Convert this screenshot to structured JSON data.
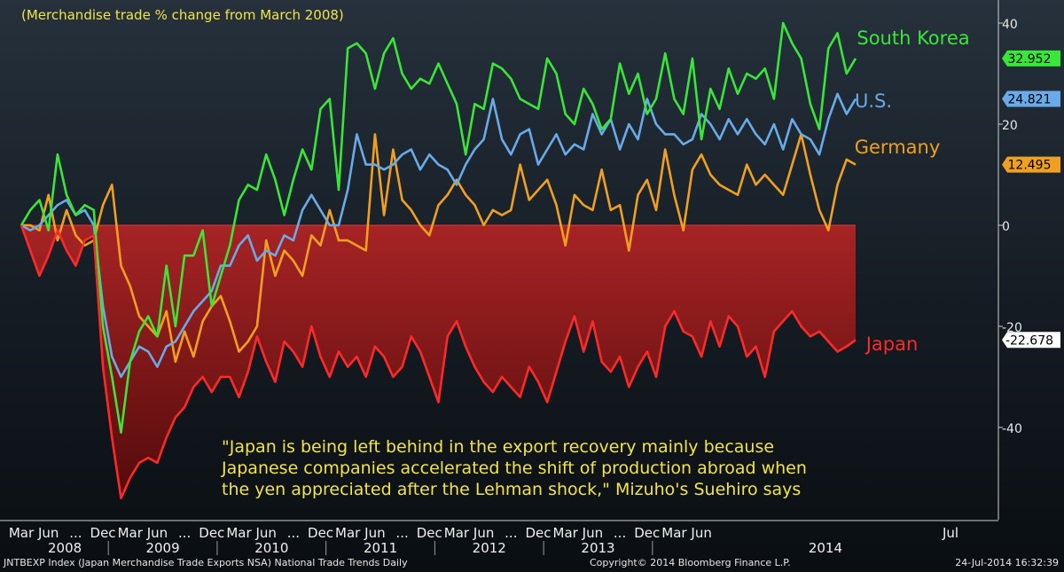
{
  "header": {
    "subtitle": "(Merchandise trade % change from March 2008)"
  },
  "annotation": {
    "lines": [
      "\"Japan is being left behind in the export recovery mainly because",
      "Japanese companies accelerated the shift of production abroad when",
      "the yen appreciated after the Lehman shock,\" Mizuho's Suehiro says"
    ]
  },
  "footer": {
    "left": "JNTBEXP Index (Japan Merchandise Trade Exports NSA) National Trade Trends  Daily",
    "center": "Copyright© 2014 Bloomberg Finance L.P.",
    "right": "24-Jul-2014 16:32:39"
  },
  "colors": {
    "south_korea": "#39e639",
    "us": "#6aaae8",
    "germany": "#f0a020",
    "japan": "#ff2a2a",
    "japan_fill": "#b01818",
    "text_yellow": "#f2e44a"
  },
  "chart_data": {
    "type": "line",
    "ylim": [
      -55,
      42
    ],
    "yticks": [
      40,
      20,
      0,
      -20,
      -40
    ],
    "fill_series": "Japan",
    "x_month_ticks": [
      "Mar",
      "Jun",
      "...",
      "Dec",
      "Mar",
      "Jun",
      "...",
      "Dec",
      "Mar",
      "Jun",
      "...",
      "Dec",
      "Mar",
      "Jun",
      "...",
      "Dec",
      "Mar",
      "Jun",
      "...",
      "Dec",
      "Mar",
      "Jun",
      "...",
      "Dec",
      "Mar",
      "Jun",
      "Jul"
    ],
    "x_year_labels": [
      "2008",
      "2009",
      "2010",
      "2011",
      "2012",
      "2013",
      "2014"
    ],
    "last_value_badges": [
      "32.952",
      "24.821",
      "12.495",
      "-22.678"
    ],
    "series": [
      {
        "name": "South Korea",
        "color": "#39e639",
        "last": "32.952",
        "values": [
          0,
          3,
          5,
          -1,
          14,
          6,
          2,
          4,
          3,
          -20,
          -30,
          -41,
          -27,
          -21,
          -18,
          -22,
          -8,
          -20,
          -6,
          -6,
          -1,
          -16,
          -10,
          -4,
          5,
          8,
          7,
          14,
          9,
          2,
          9,
          15,
          11,
          23,
          25,
          7,
          35,
          36,
          34,
          27,
          34,
          37,
          30,
          27,
          29,
          28,
          32,
          28,
          24,
          14,
          24,
          23,
          32,
          31,
          29,
          25,
          24,
          23,
          33,
          30,
          22,
          20,
          27,
          24,
          19,
          21,
          32,
          26,
          30,
          22,
          25,
          34,
          25,
          22,
          33,
          17,
          27,
          23,
          31,
          26,
          30,
          29,
          31,
          25,
          40,
          36,
          33,
          24,
          19,
          35,
          38,
          30,
          33
        ]
      },
      {
        "name": "U.S.",
        "color": "#6aaae8",
        "last": "24.821",
        "values": [
          0,
          -1,
          0,
          2,
          4,
          5,
          2,
          3,
          0,
          -16,
          -26,
          -30,
          -27,
          -24,
          -25,
          -28,
          -24,
          -23,
          -20,
          -17,
          -15,
          -13,
          -8,
          -8,
          -4,
          -2,
          -7,
          -5,
          -6,
          -2,
          -3,
          3,
          6,
          3,
          0,
          0,
          7,
          18,
          12,
          12,
          11,
          12,
          14,
          15,
          11,
          14,
          12,
          11,
          8,
          12,
          15,
          17,
          25,
          17,
          14,
          18,
          19,
          12,
          15,
          18,
          14,
          16,
          15,
          22,
          18,
          21,
          15,
          20,
          17,
          25,
          20,
          18,
          18,
          16,
          17,
          22,
          20,
          17,
          21,
          18,
          21,
          18,
          16,
          20,
          15,
          21,
          18,
          17,
          14,
          21,
          26,
          22,
          25
        ]
      },
      {
        "name": "Germany",
        "color": "#f0a020",
        "last": "12.495",
        "values": [
          0,
          0,
          -1,
          6,
          -3,
          3,
          -2,
          -4,
          -3,
          4,
          8,
          -8,
          -12,
          -18,
          -20,
          -22,
          -17,
          -27,
          -21,
          -26,
          -19,
          -16,
          -14,
          -19,
          -25,
          -23,
          -20,
          -3,
          -10,
          -5,
          -7,
          -10,
          -2,
          -4,
          3,
          -3,
          -3,
          -4,
          -5,
          18,
          2,
          15,
          5,
          3,
          0,
          -2,
          4,
          6,
          9,
          6,
          4,
          0,
          3,
          2,
          3,
          12,
          5,
          7,
          9,
          4,
          -4,
          6,
          4,
          3,
          11,
          3,
          4,
          -5,
          6,
          9,
          3,
          15,
          6,
          -1,
          11,
          14,
          10,
          8,
          7,
          6,
          12,
          8,
          10,
          8,
          6,
          12,
          18,
          10,
          3,
          -1,
          8,
          13,
          12
        ]
      },
      {
        "name": "Japan",
        "color": "#ff2a2a",
        "last": "-22.678",
        "values": [
          0,
          -5,
          -10,
          -6,
          -1,
          -5,
          -8,
          -3,
          -2,
          -28,
          -42,
          -54,
          -50,
          -47,
          -46,
          -47,
          -42,
          -38,
          -36,
          -32,
          -30,
          -33,
          -30,
          -30,
          -34,
          -29,
          -22,
          -27,
          -31,
          -23,
          -25,
          -28,
          -20,
          -26,
          -30,
          -25,
          -28,
          -26,
          -30,
          -24,
          -26,
          -30,
          -28,
          -22,
          -25,
          -30,
          -35,
          -22,
          -19,
          -24,
          -28,
          -31,
          -33,
          -30,
          -32,
          -34,
          -28,
          -31,
          -35,
          -29,
          -23,
          -18,
          -25,
          -19,
          -27,
          -29,
          -26,
          -32,
          -28,
          -25,
          -30,
          -20,
          -17,
          -21,
          -22,
          -26,
          -19,
          -24,
          -18,
          -20,
          -26,
          -24,
          -30,
          -21,
          -19,
          -17,
          -20,
          -22,
          -21,
          -23,
          -25,
          -24,
          -22.678
        ]
      }
    ]
  }
}
